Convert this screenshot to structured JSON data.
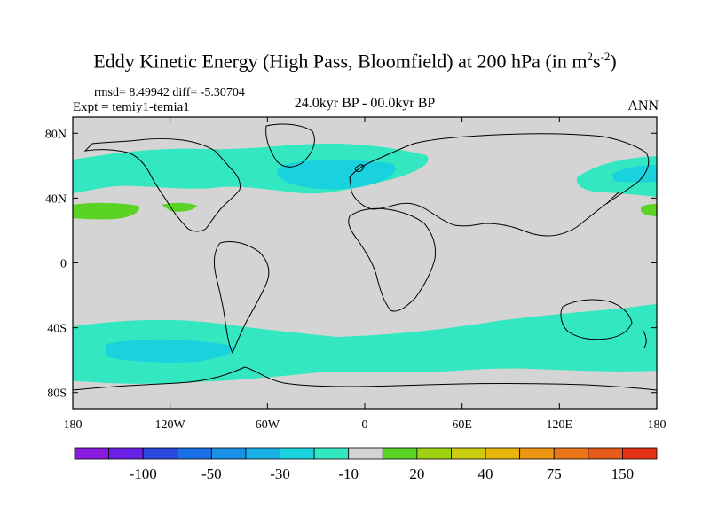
{
  "title": {
    "main": "Eddy Kinetic Energy (High Pass, Bloomfield) at 200 hPa (in m",
    "sup1": "2",
    "mid": "s",
    "sup2": "-2",
    "end": ")"
  },
  "rmsd_line": "rmsd= 8.49942 diff= -5.30704",
  "expt_line": "Expt = temiy1-temia1",
  "period": "24.0kyr BP - 00.0kyr BP",
  "season": "ANN",
  "map": {
    "projection": "cylindrical-equidistant",
    "lon_range": [
      -180,
      180
    ],
    "lat_range": [
      -90,
      90
    ],
    "lat_ticks": [
      {
        "value": 80,
        "label": "80N"
      },
      {
        "value": 40,
        "label": "40N"
      },
      {
        "value": 0,
        "label": "0"
      },
      {
        "value": -40,
        "label": "40S"
      },
      {
        "value": -80,
        "label": "80S"
      }
    ],
    "lon_ticks": [
      {
        "value": -180,
        "label": "180"
      },
      {
        "value": -120,
        "label": "120W"
      },
      {
        "value": -60,
        "label": "60W"
      },
      {
        "value": 0,
        "label": "0"
      },
      {
        "value": 60,
        "label": "60E"
      },
      {
        "value": 120,
        "label": "120E"
      },
      {
        "value": 180,
        "label": "180"
      }
    ],
    "background_color": "#d4d4d4",
    "coastline_color": "#000000",
    "field_colors": {
      "negative": "#33e8c0",
      "negative_strong": "#1ad2dd",
      "positive": "#5ad325"
    }
  },
  "colorbar": {
    "colors": [
      "#8a1ae0",
      "#6a20e6",
      "#2b48e0",
      "#1a6ee6",
      "#1a90e6",
      "#1ab0e6",
      "#1ad2dd",
      "#33e8c0",
      "#d4d4d4",
      "#5ad325",
      "#9ed112",
      "#cccd10",
      "#e6b40a",
      "#ec9612",
      "#ea761a",
      "#e75a1a",
      "#e63214"
    ],
    "labels": [
      {
        "after_box": 2,
        "text": "-100"
      },
      {
        "after_box": 4,
        "text": "-50"
      },
      {
        "after_box": 6,
        "text": "-30"
      },
      {
        "after_box": 8,
        "text": "-10"
      },
      {
        "after_box": 10,
        "text": "20"
      },
      {
        "after_box": 12,
        "text": "40"
      },
      {
        "after_box": 14,
        "text": "75"
      },
      {
        "after_box": 16,
        "text": "150"
      }
    ]
  }
}
